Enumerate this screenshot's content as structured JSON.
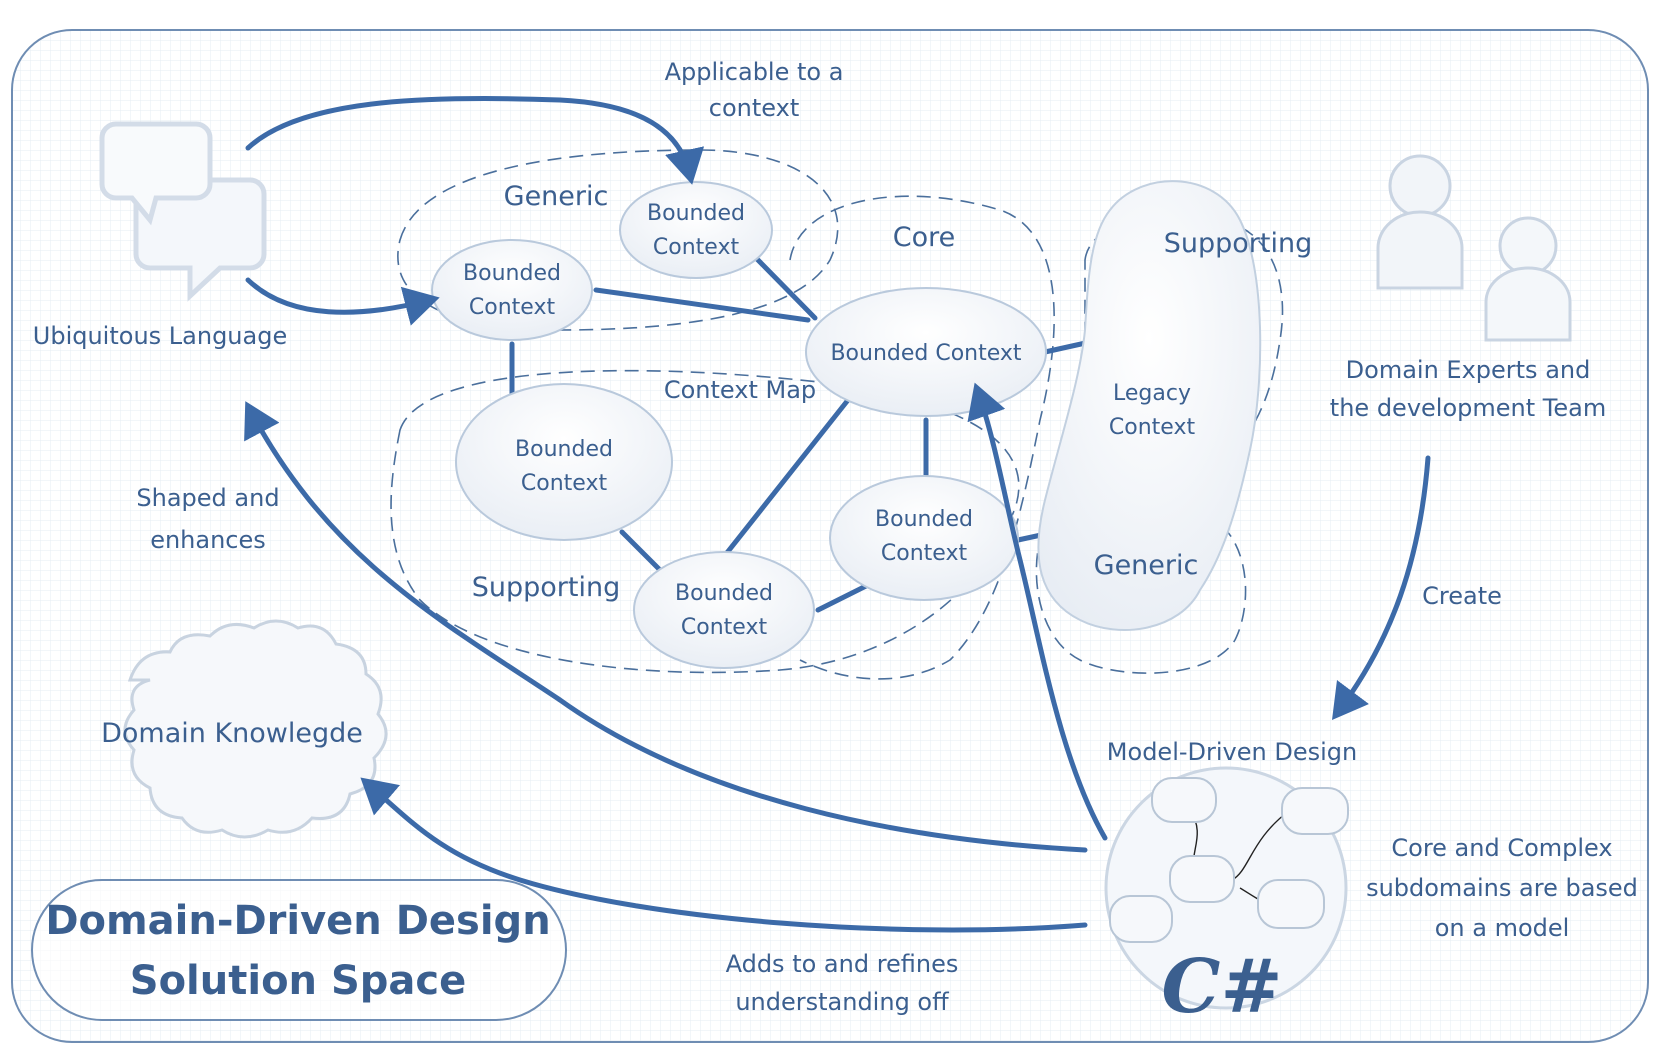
{
  "labels": {
    "applicable": [
      "Applicable to a",
      "context"
    ],
    "generic_top": "Generic",
    "core": "Core",
    "supporting_right": "Supporting",
    "ubiquitous": "Ubiquitous Language",
    "context_map": "Context Map",
    "legacy": [
      "Legacy",
      "Context"
    ],
    "domain_experts": [
      "Domain Experts and",
      "the development Team"
    ],
    "shaped": [
      "Shaped and",
      "enhances"
    ],
    "supporting_left": "Supporting",
    "generic_right": "Generic",
    "create": "Create",
    "domain_knowledge": "Domain Knowlegde",
    "model_driven": "Model-Driven Design",
    "core_complex": [
      "Core and Complex",
      "subdomains are based",
      "on a model"
    ],
    "title": [
      "Domain-Driven Design",
      "Solution Space"
    ],
    "adds": [
      "Adds to and refines",
      "understanding off"
    ],
    "csharp": "C#"
  },
  "bounded": {
    "top_right": [
      "Bounded",
      "Context"
    ],
    "top_left": [
      "Bounded",
      "Context"
    ],
    "core_main": "Bounded Context",
    "mid_left": [
      "Bounded",
      "Context"
    ],
    "lower_mid": [
      "Bounded",
      "Context"
    ],
    "lower_center": [
      "Bounded",
      "Context"
    ]
  },
  "icons": [
    "speech-bubbles-icon",
    "users-icon"
  ],
  "colors": {
    "ink": "#3b5f8f",
    "line": "#3c6aa8",
    "grid": "#e6ecf3"
  }
}
